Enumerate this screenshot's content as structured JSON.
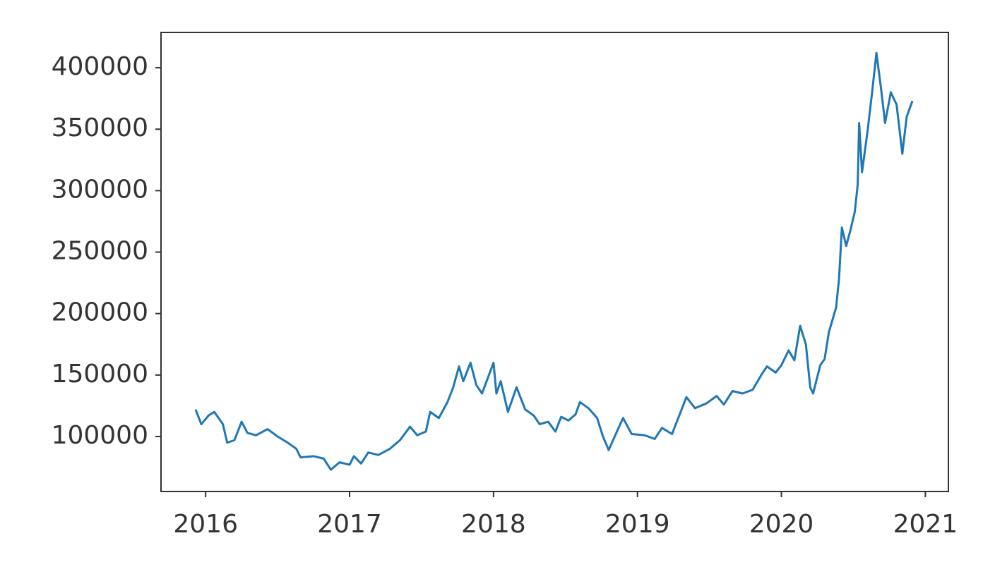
{
  "chart_data": {
    "type": "line",
    "x": [
      2015.93,
      2015.97,
      2016.02,
      2016.06,
      2016.12,
      2016.15,
      2016.2,
      2016.25,
      2016.29,
      2016.35,
      2016.43,
      2016.5,
      2016.57,
      2016.63,
      2016.66,
      2016.75,
      2016.82,
      2016.87,
      2016.93,
      2017.0,
      2017.03,
      2017.08,
      2017.13,
      2017.2,
      2017.28,
      2017.35,
      2017.42,
      2017.47,
      2017.53,
      2017.56,
      2017.62,
      2017.68,
      2017.72,
      2017.76,
      2017.79,
      2017.84,
      2017.88,
      2017.92,
      2018.0,
      2018.02,
      2018.05,
      2018.1,
      2018.16,
      2018.22,
      2018.28,
      2018.32,
      2018.38,
      2018.43,
      2018.47,
      2018.52,
      2018.57,
      2018.6,
      2018.66,
      2018.72,
      2018.76,
      2018.8,
      2018.88,
      2018.9,
      2018.96,
      2019.05,
      2019.12,
      2019.17,
      2019.24,
      2019.29,
      2019.34,
      2019.4,
      2019.48,
      2019.55,
      2019.6,
      2019.66,
      2019.73,
      2019.8,
      2019.86,
      2019.9,
      2019.96,
      2020.0,
      2020.05,
      2020.09,
      2020.13,
      2020.17,
      2020.2,
      2020.22,
      2020.27,
      2020.3,
      2020.33,
      2020.38,
      2020.4,
      2020.42,
      2020.45,
      2020.48,
      2020.51,
      2020.53,
      2020.54,
      2020.56,
      2020.6,
      2020.63,
      2020.66,
      2020.69,
      2020.72,
      2020.76,
      2020.8,
      2020.84,
      2020.87,
      2020.91
    ],
    "series": [
      {
        "color": "#1f77b4",
        "values": [
          122000,
          110000,
          117000,
          120000,
          110000,
          95000,
          97000,
          112000,
          103000,
          101000,
          106000,
          100000,
          95000,
          90000,
          83000,
          84000,
          82000,
          73000,
          79000,
          77000,
          84000,
          78000,
          87000,
          85000,
          90000,
          97000,
          108000,
          101000,
          104000,
          120000,
          115000,
          128000,
          140000,
          157000,
          145000,
          160000,
          142000,
          135000,
          160000,
          135000,
          145000,
          120000,
          140000,
          122000,
          117000,
          110000,
          112000,
          104000,
          116000,
          113000,
          118000,
          128000,
          123000,
          115000,
          100000,
          89000,
          110000,
          115000,
          102000,
          101000,
          98000,
          107000,
          102000,
          117000,
          132000,
          123000,
          127000,
          133000,
          126000,
          137000,
          135000,
          138000,
          150000,
          157000,
          152000,
          158000,
          170000,
          162000,
          190000,
          175000,
          140000,
          135000,
          158000,
          163000,
          185000,
          205000,
          228000,
          270000,
          255000,
          268000,
          283000,
          305000,
          355000,
          315000,
          350000,
          380000,
          412000,
          385000,
          355000,
          380000,
          370000,
          330000,
          360000,
          373000
        ]
      }
    ],
    "xlim": [
      2015.69,
      2021.16
    ],
    "xticks": [
      2016,
      2017,
      2018,
      2019,
      2020,
      2021
    ],
    "ylim": [
      55260,
      428700
    ],
    "yticks": [
      100000,
      150000,
      200000,
      250000,
      300000,
      350000,
      400000
    ]
  }
}
